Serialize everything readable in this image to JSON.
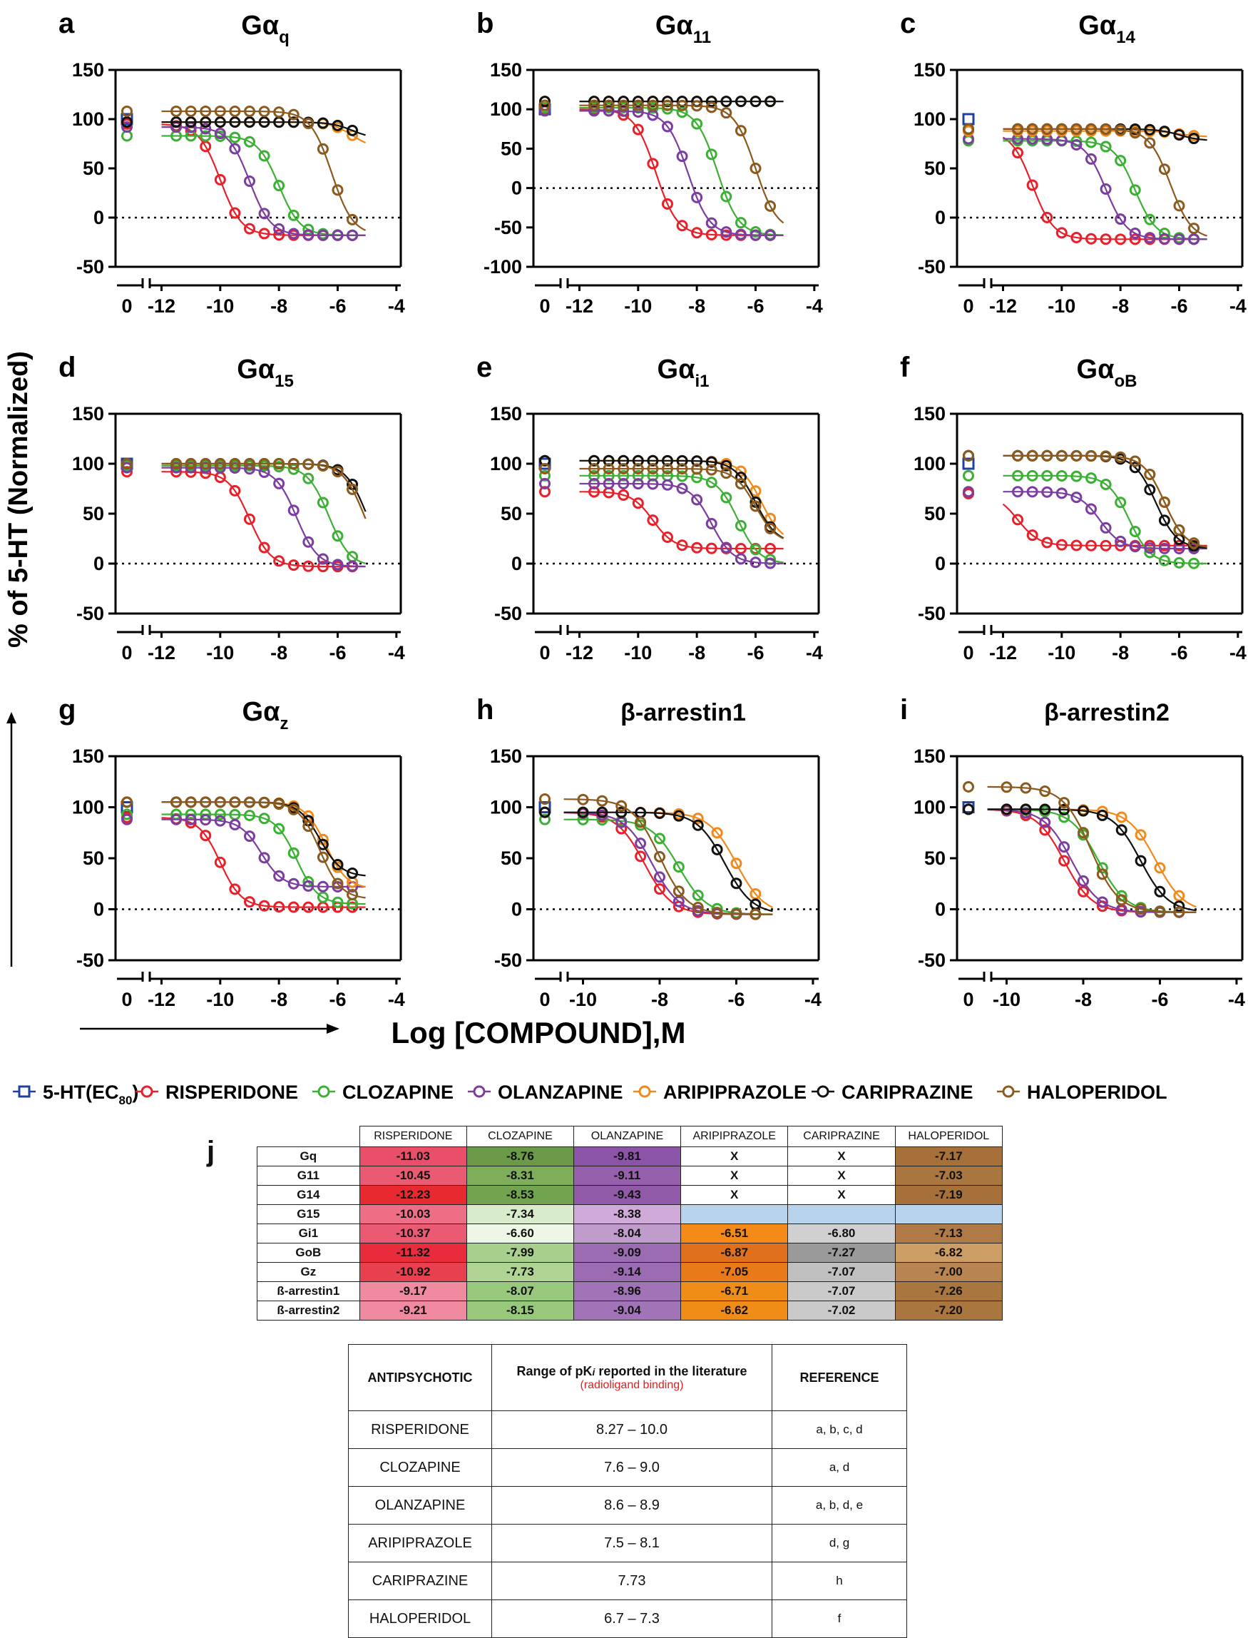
{
  "y_axis_title": "% of 5-HT (Normalized)",
  "x_axis_title": "Log [COMPOUND],M",
  "legend": [
    {
      "label": "5-HT(EC80)",
      "color": "#2040a0"
    },
    {
      "label": "RISPERIDONE",
      "color": "#e8202a"
    },
    {
      "label": "CLOZAPINE",
      "color": "#3cb034"
    },
    {
      "label": "OLANZAPINE",
      "color": "#7b3ea0"
    },
    {
      "label": "ARIPIPRAZOLE",
      "color": "#f08a1c"
    },
    {
      "label": "CARIPRAZINE",
      "color": "#111111"
    },
    {
      "label": "HALOPERIDOL",
      "color": "#8b5a1e"
    }
  ],
  "chart_data": [
    {
      "panel": "a",
      "type": "line",
      "title": "Gαq",
      "ylim": [
        -50,
        150
      ],
      "yticks": [
        150,
        100,
        50,
        0,
        -50
      ],
      "xticks": [
        -12,
        -10,
        -8,
        -6,
        -4
      ],
      "x_break_tick": 0,
      "curves": {
        "RISPERIDONE": {
          "top": 95,
          "bottom": -18,
          "logIC50": -10.0
        },
        "CLOZAPINE": {
          "top": 83,
          "bottom": -18,
          "logIC50": -8.0
        },
        "OLANZAPINE": {
          "top": 92,
          "bottom": -18,
          "logIC50": -9.0
        },
        "ARIPIPRAZOLE": {
          "top": 97,
          "bottom": 70,
          "logIC50": -5.5
        },
        "CARIPRAZINE": {
          "top": 97,
          "bottom": 80,
          "logIC50": -5.5
        },
        "HALOPERIDOL": {
          "top": 108,
          "bottom": -18,
          "logIC50": -6.2
        }
      }
    },
    {
      "panel": "b",
      "type": "line",
      "title": "Gα11",
      "ylim": [
        -100,
        150
      ],
      "yticks": [
        150,
        100,
        50,
        0,
        -50,
        -100
      ],
      "xticks": [
        -12,
        -10,
        -8,
        -6,
        -4
      ],
      "x_break_tick": 0,
      "curves": {
        "RISPERIDONE": {
          "top": 100,
          "bottom": -60,
          "logIC50": -9.4
        },
        "CLOZAPINE": {
          "top": 102,
          "bottom": -60,
          "logIC50": -7.3
        },
        "OLANZAPINE": {
          "top": 98,
          "bottom": -60,
          "logIC50": -8.3
        },
        "ARIPIPRAZOLE": {
          "top": 110,
          "bottom": 110,
          "logIC50": -6.0
        },
        "CARIPRAZINE": {
          "top": 110,
          "bottom": 110,
          "logIC50": -6.0
        },
        "HALOPERIDOL": {
          "top": 105,
          "bottom": -55,
          "logIC50": -6.0
        }
      }
    },
    {
      "panel": "c",
      "type": "line",
      "title": "Gα14",
      "ylim": [
        -50,
        150
      ],
      "yticks": [
        150,
        100,
        50,
        0,
        -50
      ],
      "xticks": [
        -12,
        -10,
        -8,
        -6,
        -4
      ],
      "x_break_tick": 0,
      "curves": {
        "RISPERIDONE": {
          "top": 88,
          "bottom": -22,
          "logIC50": -11.0
        },
        "CLOZAPINE": {
          "top": 78,
          "bottom": -22,
          "logIC50": -7.5
        },
        "OLANZAPINE": {
          "top": 80,
          "bottom": -22,
          "logIC50": -8.5
        },
        "ARIPIPRAZOLE": {
          "top": 88,
          "bottom": 82,
          "logIC50": -6.0
        },
        "CARIPRAZINE": {
          "top": 90,
          "bottom": 78,
          "logIC50": -6.0
        },
        "HALOPERIDOL": {
          "top": 90,
          "bottom": -22,
          "logIC50": -6.3
        }
      }
    },
    {
      "panel": "d",
      "type": "line",
      "title": "Gα15",
      "ylim": [
        -50,
        150
      ],
      "yticks": [
        150,
        100,
        50,
        0,
        -50
      ],
      "xticks": [
        -12,
        -10,
        -8,
        -6,
        -4
      ],
      "x_break_tick": 0,
      "curves": {
        "RISPERIDONE": {
          "top": 92,
          "bottom": -3,
          "logIC50": -9.0
        },
        "CLOZAPINE": {
          "top": 98,
          "bottom": -3,
          "logIC50": -6.3
        },
        "OLANZAPINE": {
          "top": 96,
          "bottom": -3,
          "logIC50": -7.4
        },
        "ARIPIPRAZOLE": {
          "top": 100,
          "bottom": -3,
          "logIC50": -5.1
        },
        "CARIPRAZINE": {
          "top": 100,
          "bottom": -3,
          "logIC50": -5.0
        },
        "HALOPERIDOL": {
          "top": 100,
          "bottom": -3,
          "logIC50": -5.1
        }
      }
    },
    {
      "panel": "e",
      "type": "line",
      "title": "Gαi1",
      "ylim": [
        -50,
        150
      ],
      "yticks": [
        150,
        100,
        50,
        0,
        -50
      ],
      "xticks": [
        -12,
        -10,
        -8,
        -6,
        -4
      ],
      "x_break_tick": 0,
      "curves": {
        "RISPERIDONE": {
          "top": 72,
          "bottom": 15,
          "logIC50": -9.5
        },
        "CLOZAPINE": {
          "top": 88,
          "bottom": 0,
          "logIC50": -6.6
        },
        "OLANZAPINE": {
          "top": 80,
          "bottom": 0,
          "logIC50": -7.5
        },
        "ARIPIPRAZOLE": {
          "top": 103,
          "bottom": 20,
          "logIC50": -5.8
        },
        "CARIPRAZINE": {
          "top": 103,
          "bottom": 20,
          "logIC50": -6.0
        },
        "HALOPERIDOL": {
          "top": 95,
          "bottom": 20,
          "logIC50": -6.0
        }
      }
    },
    {
      "panel": "f",
      "type": "line",
      "title": "GαoB",
      "ylim": [
        -50,
        150
      ],
      "yticks": [
        150,
        100,
        50,
        0,
        -50
      ],
      "xticks": [
        -12,
        -10,
        -8,
        -6,
        -4
      ],
      "x_break_tick": 0,
      "curves": {
        "RISPERIDONE": {
          "top": 70,
          "bottom": 18,
          "logIC50": -11.5
        },
        "CLOZAPINE": {
          "top": 88,
          "bottom": 0,
          "logIC50": -7.7
        },
        "OLANZAPINE": {
          "top": 72,
          "bottom": 15,
          "logIC50": -8.7
        },
        "ARIPIPRAZOLE": {
          "top": 108,
          "bottom": 15,
          "logIC50": -6.5
        },
        "CARIPRAZINE": {
          "top": 108,
          "bottom": 15,
          "logIC50": -6.8
        },
        "HALOPERIDOL": {
          "top": 108,
          "bottom": 15,
          "logIC50": -6.5
        }
      }
    },
    {
      "panel": "g",
      "type": "line",
      "title": "Gαz",
      "ylim": [
        -50,
        150
      ],
      "yticks": [
        150,
        100,
        50,
        0,
        -50
      ],
      "xticks": [
        -12,
        -10,
        -8,
        -6,
        -4
      ],
      "x_break_tick": 0,
      "curves": {
        "RISPERIDONE": {
          "top": 90,
          "bottom": 2,
          "logIC50": -10.0
        },
        "CLOZAPINE": {
          "top": 93,
          "bottom": 5,
          "logIC50": -7.4
        },
        "OLANZAPINE": {
          "top": 88,
          "bottom": 22,
          "logIC50": -8.6
        },
        "ARIPIPRAZOLE": {
          "top": 105,
          "bottom": 20,
          "logIC50": -6.4
        },
        "CARIPRAZINE": {
          "top": 105,
          "bottom": 32,
          "logIC50": -6.6
        },
        "HALOPERIDOL": {
          "top": 105,
          "bottom": 10,
          "logIC50": -6.6
        }
      }
    },
    {
      "panel": "h",
      "type": "line",
      "title": "β-arrestin1",
      "ylim": [
        -50,
        150
      ],
      "yticks": [
        150,
        100,
        50,
        0,
        -50
      ],
      "xticks": [
        -10,
        -8,
        -6,
        -4
      ],
      "x_break_tick": 0,
      "curves": {
        "RISPERIDONE": {
          "top": 95,
          "bottom": -5,
          "logIC50": -8.4
        },
        "CLOZAPINE": {
          "top": 88,
          "bottom": -5,
          "logIC50": -7.5
        },
        "OLANZAPINE": {
          "top": 95,
          "bottom": -5,
          "logIC50": -8.2
        },
        "ARIPIPRAZOLE": {
          "top": 95,
          "bottom": -5,
          "logIC50": -6.0
        },
        "CARIPRAZINE": {
          "top": 95,
          "bottom": -5,
          "logIC50": -6.3
        },
        "HALOPERIDOL": {
          "top": 108,
          "bottom": -5,
          "logIC50": -8.0
        }
      }
    },
    {
      "panel": "i",
      "type": "line",
      "title": "β-arrestin2",
      "ylim": [
        -50,
        150
      ],
      "yticks": [
        150,
        100,
        50,
        0,
        -50
      ],
      "xticks": [
        -10,
        -8,
        -6,
        -4
      ],
      "x_break_tick": 0,
      "curves": {
        "RISPERIDONE": {
          "top": 98,
          "bottom": -3,
          "logIC50": -8.5
        },
        "CLOZAPINE": {
          "top": 98,
          "bottom": -3,
          "logIC50": -7.6
        },
        "OLANZAPINE": {
          "top": 98,
          "bottom": -3,
          "logIC50": -8.3
        },
        "ARIPIPRAZOLE": {
          "top": 98,
          "bottom": -3,
          "logIC50": -6.1
        },
        "CARIPRAZINE": {
          "top": 98,
          "bottom": -3,
          "logIC50": -6.5
        },
        "HALOPERIDOL": {
          "top": 120,
          "bottom": -3,
          "logIC50": -7.8
        }
      }
    }
  ],
  "table_j": {
    "label": "j",
    "columns": [
      "RISPERIDONE",
      "CLOZAPINE",
      "OLANZAPINE",
      "ARIPIPRAZOLE",
      "CARIPRAZINE",
      "HALOPERIDOL"
    ],
    "rows": [
      {
        "label": "Gq",
        "values": [
          "-11.03",
          "-8.76",
          "-9.81",
          "X",
          "X",
          "-7.17"
        ]
      },
      {
        "label": "G11",
        "values": [
          "-10.45",
          "-8.31",
          "-9.11",
          "X",
          "X",
          "-7.03"
        ]
      },
      {
        "label": "G14",
        "values": [
          "-12.23",
          "-8.53",
          "-9.43",
          "X",
          "X",
          "-7.19"
        ]
      },
      {
        "label": "G15",
        "values": [
          "-10.03",
          "-7.34",
          "-8.38",
          "",
          "",
          ""
        ]
      },
      {
        "label": "Gi1",
        "values": [
          "-10.37",
          "-6.60",
          "-8.04",
          "-6.51",
          "-6.80",
          "-7.13"
        ]
      },
      {
        "label": "GoB",
        "values": [
          "-11.32",
          "-7.99",
          "-9.09",
          "-6.87",
          "-7.27",
          "-6.82"
        ]
      },
      {
        "label": "Gz",
        "values": [
          "-10.92",
          "-7.73",
          "-9.14",
          "-7.05",
          "-7.07",
          "-7.00"
        ]
      },
      {
        "label": "ß-arrestin1",
        "values": [
          "-9.17",
          "-8.07",
          "-8.96",
          "-6.71",
          "-7.07",
          "-7.26"
        ]
      },
      {
        "label": "ß-arrestin2",
        "values": [
          "-9.21",
          "-8.15",
          "-9.04",
          "-6.62",
          "-7.02",
          "-7.20"
        ]
      }
    ],
    "colors": [
      [
        "#ea4f6a",
        "#6a9a48",
        "#8c54a6",
        "#ffffff",
        "#ffffff",
        "#a5703a"
      ],
      [
        "#ea5a72",
        "#7eae5a",
        "#9660ac",
        "#ffffff",
        "#ffffff",
        "#a97640"
      ],
      [
        "#e82a30",
        "#72a450",
        "#905aa9",
        "#ffffff",
        "#ffffff",
        "#a5703a"
      ],
      [
        "#ee6e86",
        "#d8ebca",
        "#d0aad8",
        "#b8d4ec",
        "#b8d4ec",
        "#b8d4ec"
      ],
      [
        "#ea5a72",
        "#eef6e6",
        "#c09ccc",
        "#f58a18",
        "#d0d0d0",
        "#b07a46"
      ],
      [
        "#e82c3c",
        "#a8d08c",
        "#9c6cb2",
        "#e0701c",
        "#9a9a9a",
        "#cc9e66"
      ],
      [
        "#e8404e",
        "#b0d494",
        "#9c6cb2",
        "#e87a1a",
        "#c0c0c0",
        "#b88552"
      ],
      [
        "#f08aa0",
        "#98c87c",
        "#a074b6",
        "#f08c18",
        "#cacaca",
        "#a97640"
      ],
      [
        "#f08aa0",
        "#98c87c",
        "#a074b6",
        "#f08c18",
        "#cacaca",
        "#a97640"
      ]
    ]
  },
  "table_pk": {
    "headers": {
      "col1": "ANTIPSYCHOTIC",
      "col2_main": "Range of pK",
      "col2_sub_i": "i",
      "col2_rest": " reported in the literature",
      "col2_note": "(radioligand binding)",
      "col3": "REFERENCE"
    },
    "rows": [
      {
        "name": "RISPERIDONE",
        "range": "8.27 – 10.0",
        "ref": "a, b, c, d"
      },
      {
        "name": "CLOZAPINE",
        "range": "7.6 – 9.0",
        "ref": "a, d"
      },
      {
        "name": "OLANZAPINE",
        "range": "8.6 – 8.9",
        "ref": "a, b, d, e"
      },
      {
        "name": "ARIPIPRAZOLE",
        "range": "7.5 – 8.1",
        "ref": "d, g"
      },
      {
        "name": "CARIPRAZINE",
        "range": "7.73",
        "ref": "h"
      },
      {
        "name": "HALOPERIDOL",
        "range": "6.7 – 7.3",
        "ref": "f"
      }
    ]
  }
}
